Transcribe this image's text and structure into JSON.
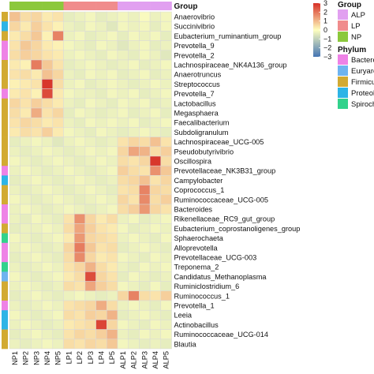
{
  "chart_data": {
    "type": "heatmap",
    "columns": [
      "NP1",
      "NP2",
      "NP3",
      "NP4",
      "NP5",
      "LP1",
      "LP2",
      "LP3",
      "LP4",
      "LP5",
      "ALP1",
      "ALP2",
      "ALP3",
      "ALP4",
      "ALP5"
    ],
    "column_groups": [
      "NP",
      "NP",
      "NP",
      "NP",
      "NP",
      "LP",
      "LP",
      "LP",
      "LP",
      "LP",
      "ALP",
      "ALP",
      "ALP",
      "ALP",
      "ALP"
    ],
    "group_header": "Group",
    "rows": [
      "Anaerovibrio",
      "Succinivibrio",
      "Eubacterium_ruminantium_group",
      "Prevotella_9",
      "Prevotella_2",
      "Lachnospiraceae_NK4A136_group",
      "Anaerotruncus",
      "Streptococcus",
      "Prevotella_7",
      "Lactobacillus",
      "Megasphaera",
      "Faecalibacterium",
      "Subdoligranulum",
      "Lachnospiraceae_UCG-005",
      "Pseudobutyrivibrio",
      "Oscillospira",
      "Prevotellaceae_NK3B31_group",
      "Campylobacter",
      "Coprococcus_1",
      "Ruminococcaceae_UCG-005",
      "Bacteroides",
      "Rikenellaceae_RC9_gut_group",
      "Eubacterium_coprostanoligenes_group",
      "Sphaerochaeta",
      "Alloprevotella",
      "Prevotellaceae_UCG-003",
      "Treponema_2",
      "Candidatus_Methanoplasma",
      "Ruminiclostridium_6",
      "Ruminococcus_1",
      "Prevotella_1",
      "Leeia",
      "Actinobacillus",
      "Ruminococcaceae_UCG-014",
      "Blautia"
    ],
    "row_phylum": [
      "Firmicutes",
      "Proteobacteria",
      "Firmicutes",
      "Bacteroidetes",
      "Bacteroidetes",
      "Firmicutes",
      "Firmicutes",
      "Firmicutes",
      "Bacteroidetes",
      "Firmicutes",
      "Firmicutes",
      "Firmicutes",
      "Firmicutes",
      "Firmicutes",
      "Firmicutes",
      "Firmicutes",
      "Bacteroidetes",
      "Proteobacteria",
      "Firmicutes",
      "Firmicutes",
      "Bacteroidetes",
      "Bacteroidetes",
      "Firmicutes",
      "Spirochaetes",
      "Bacteroidetes",
      "Bacteroidetes",
      "Spirochaetes",
      "Euryarchaeota",
      "Firmicutes",
      "Firmicutes",
      "Bacteroidetes",
      "Proteobacteria",
      "Proteobacteria",
      "Firmicutes",
      "Firmicutes"
    ],
    "values": [
      [
        0.9,
        0.5,
        0.6,
        0.3,
        0.4,
        -0.4,
        -0.3,
        -0.2,
        -0.4,
        -0.3,
        -0.2,
        -0.3,
        -0.1,
        -0.3,
        -0.2
      ],
      [
        0.6,
        0.3,
        0.7,
        0.4,
        0.2,
        -0.3,
        -0.4,
        -0.2,
        -0.3,
        -0.5,
        -0.2,
        -0.3,
        -0.2,
        -0.4,
        -0.2
      ],
      [
        0.3,
        0.5,
        0.8,
        0.2,
        1.8,
        -0.3,
        -0.2,
        -0.4,
        -0.3,
        -0.2,
        -0.4,
        -0.2,
        -0.3,
        -0.2,
        -0.4
      ],
      [
        0.4,
        0.8,
        0.6,
        0.3,
        0.2,
        -0.2,
        -0.3,
        -0.4,
        -0.2,
        -0.3,
        -0.5,
        -0.3,
        -0.2,
        -0.4,
        -0.3
      ],
      [
        0.5,
        0.7,
        0.6,
        0.4,
        0.3,
        -0.3,
        -0.2,
        -0.3,
        -0.4,
        -0.2,
        -0.3,
        -0.4,
        -0.2,
        -0.3,
        -0.5
      ],
      [
        0.3,
        0.2,
        1.9,
        0.8,
        0.4,
        -0.4,
        -0.3,
        -0.2,
        -0.3,
        -0.4,
        -0.3,
        -0.2,
        -0.4,
        -0.3,
        -0.2
      ],
      [
        0.4,
        0.5,
        0.3,
        0.9,
        0.6,
        -0.3,
        -0.4,
        -0.2,
        -0.3,
        -0.2,
        -0.4,
        -0.3,
        -0.2,
        -0.4,
        -0.3
      ],
      [
        0.2,
        0.3,
        0.4,
        2.9,
        0.5,
        -0.3,
        -0.2,
        -0.4,
        -0.3,
        -0.2,
        -0.3,
        -0.4,
        -0.3,
        -0.2,
        -0.3
      ],
      [
        0.3,
        0.4,
        0.2,
        2.6,
        0.3,
        -0.2,
        -0.3,
        -0.3,
        -0.4,
        -0.2,
        -0.3,
        -0.2,
        -0.4,
        -0.3,
        -0.2
      ],
      [
        0.6,
        0.4,
        0.7,
        0.5,
        0.3,
        -0.3,
        -0.4,
        -0.2,
        -0.3,
        -0.4,
        -0.2,
        -0.3,
        -0.2,
        -0.4,
        -0.3
      ],
      [
        0.5,
        0.3,
        1.2,
        0.4,
        0.6,
        -0.4,
        -0.2,
        -0.3,
        -0.4,
        -0.3,
        -0.2,
        -0.4,
        -0.3,
        -0.2,
        -0.4
      ],
      [
        0.4,
        0.6,
        0.5,
        0.3,
        0.4,
        -0.3,
        -0.4,
        -0.2,
        -0.3,
        -0.2,
        -0.3,
        -0.2,
        -0.4,
        -0.3,
        -0.2
      ],
      [
        0.3,
        0.5,
        0.4,
        0.7,
        0.3,
        -0.2,
        -0.3,
        -0.4,
        -0.2,
        -0.3,
        -0.4,
        -0.3,
        -0.2,
        -0.3,
        -0.4
      ],
      [
        -0.4,
        -0.3,
        -0.2,
        -0.3,
        -0.5,
        -0.3,
        -0.2,
        -0.3,
        -0.4,
        -0.3,
        0.4,
        0.6,
        0.5,
        0.9,
        0.4
      ],
      [
        -0.3,
        -0.4,
        -0.3,
        -0.2,
        -0.3,
        -0.4,
        -0.3,
        -0.2,
        -0.3,
        -0.2,
        0.6,
        1.3,
        1.1,
        0.5,
        0.7
      ],
      [
        -0.2,
        -0.3,
        -0.4,
        -0.3,
        -0.2,
        -0.3,
        -0.4,
        -0.3,
        -0.2,
        -0.3,
        0.5,
        0.4,
        0.6,
        2.9,
        0.5
      ],
      [
        -0.3,
        -0.2,
        -0.3,
        -0.4,
        -0.3,
        -0.2,
        -0.3,
        -0.4,
        -0.3,
        -0.2,
        0.7,
        0.5,
        0.4,
        1.6,
        0.8
      ],
      [
        -0.4,
        -0.3,
        -0.2,
        -0.3,
        -0.4,
        -0.3,
        -0.2,
        -0.3,
        -0.4,
        -0.3,
        0.5,
        0.6,
        0.9,
        0.4,
        0.6
      ],
      [
        -0.3,
        -0.4,
        -0.3,
        -0.2,
        -0.3,
        -0.4,
        -0.3,
        -0.2,
        -0.3,
        -0.4,
        0.4,
        0.5,
        1.8,
        0.6,
        0.5
      ],
      [
        -0.2,
        -0.3,
        -0.4,
        -0.3,
        -0.2,
        -0.3,
        -0.4,
        -0.3,
        -0.2,
        -0.3,
        0.6,
        0.4,
        1.7,
        0.5,
        0.7
      ],
      [
        -0.3,
        -0.2,
        -0.3,
        -0.4,
        -0.3,
        -0.2,
        -0.3,
        -0.4,
        -0.3,
        -0.2,
        0.5,
        0.7,
        1.5,
        0.6,
        0.4
      ],
      [
        -0.3,
        -0.4,
        -0.2,
        -0.3,
        -0.4,
        0.4,
        1.6,
        0.6,
        0.3,
        0.5,
        -0.3,
        -0.2,
        -0.4,
        -0.3,
        -0.2
      ],
      [
        -0.4,
        -0.3,
        -0.3,
        -0.2,
        -0.3,
        0.5,
        1.3,
        0.7,
        0.4,
        0.3,
        -0.2,
        -0.4,
        -0.3,
        -0.2,
        -0.3
      ],
      [
        -0.2,
        -0.3,
        -0.4,
        -0.3,
        -0.2,
        0.3,
        1.5,
        0.6,
        0.5,
        0.4,
        -0.3,
        -0.2,
        -0.3,
        -0.4,
        -0.2
      ],
      [
        -0.3,
        -0.2,
        -0.3,
        -0.4,
        -0.3,
        0.6,
        1.9,
        0.8,
        0.4,
        0.5,
        -0.4,
        -0.3,
        -0.2,
        -0.3,
        -0.4
      ],
      [
        -0.4,
        -0.3,
        -0.2,
        -0.3,
        -0.4,
        0.5,
        1.7,
        0.6,
        0.3,
        0.4,
        -0.2,
        -0.3,
        -0.4,
        -0.2,
        -0.3
      ],
      [
        -0.3,
        -0.4,
        -0.3,
        -0.2,
        -0.3,
        0.4,
        0.6,
        1.1,
        0.5,
        0.3,
        -0.3,
        -0.4,
        -0.2,
        -0.3,
        -0.2
      ],
      [
        -0.2,
        -0.3,
        -0.4,
        -0.3,
        -0.2,
        0.3,
        0.5,
        2.6,
        0.6,
        0.4,
        -0.4,
        -0.2,
        -0.3,
        -0.4,
        -0.3
      ],
      [
        -0.3,
        -0.2,
        -0.3,
        -0.4,
        -0.3,
        0.5,
        0.4,
        1.3,
        0.7,
        0.5,
        -0.2,
        -0.3,
        -0.4,
        -0.2,
        -0.4
      ],
      [
        -0.4,
        -0.3,
        -0.2,
        -0.3,
        -0.4,
        -0.3,
        -0.2,
        -0.3,
        -0.4,
        -0.3,
        0.6,
        1.8,
        0.5,
        0.4,
        0.7
      ],
      [
        -0.3,
        -0.4,
        -0.3,
        -0.2,
        -0.3,
        0.4,
        0.5,
        0.6,
        1.2,
        0.5,
        -0.3,
        -0.2,
        -0.3,
        -0.4,
        -0.2
      ],
      [
        -0.2,
        -0.3,
        -0.4,
        -0.3,
        -0.2,
        0.5,
        0.4,
        0.7,
        0.6,
        1.1,
        -0.4,
        -0.3,
        -0.2,
        -0.3,
        -0.4
      ],
      [
        -0.3,
        -0.2,
        -0.3,
        -0.4,
        -0.3,
        0.3,
        0.4,
        0.5,
        2.7,
        0.6,
        -0.2,
        -0.3,
        -0.4,
        -0.2,
        -0.3
      ],
      [
        -0.4,
        -0.3,
        -0.2,
        -0.3,
        -0.4,
        0.4,
        0.6,
        0.5,
        0.7,
        1.1,
        -0.3,
        -0.4,
        -0.2,
        -0.3,
        -0.2
      ],
      [
        -0.3,
        -0.4,
        -0.3,
        -0.2,
        -0.3,
        0.5,
        0.4,
        0.6,
        0.5,
        0.8,
        -0.2,
        -0.3,
        -0.4,
        -0.3,
        -0.4
      ]
    ],
    "value_range": [
      -3,
      3
    ],
    "colorbar_ticks": [
      3,
      2,
      1,
      0,
      -1,
      -2,
      -3
    ],
    "color_scale": [
      "#4575b4",
      "#ffffbf",
      "#d73027"
    ],
    "legend": {
      "group_title": "Group",
      "groups": [
        {
          "label": "ALP",
          "color": "#e1a0f0"
        },
        {
          "label": "LP",
          "color": "#f08c8c"
        },
        {
          "label": "NP",
          "color": "#8cc83c"
        }
      ],
      "phylum_title": "Phylum",
      "phyla": [
        {
          "label": "Bacteroidetes",
          "color": "#ee82e6"
        },
        {
          "label": "Euryarchaeota",
          "color": "#6eb4f0"
        },
        {
          "label": "Firmicutes",
          "color": "#d2aa32"
        },
        {
          "label": "Proteobacteria",
          "color": "#2db4e6"
        },
        {
          "label": "Spirochaetes",
          "color": "#32d28c"
        }
      ]
    }
  }
}
